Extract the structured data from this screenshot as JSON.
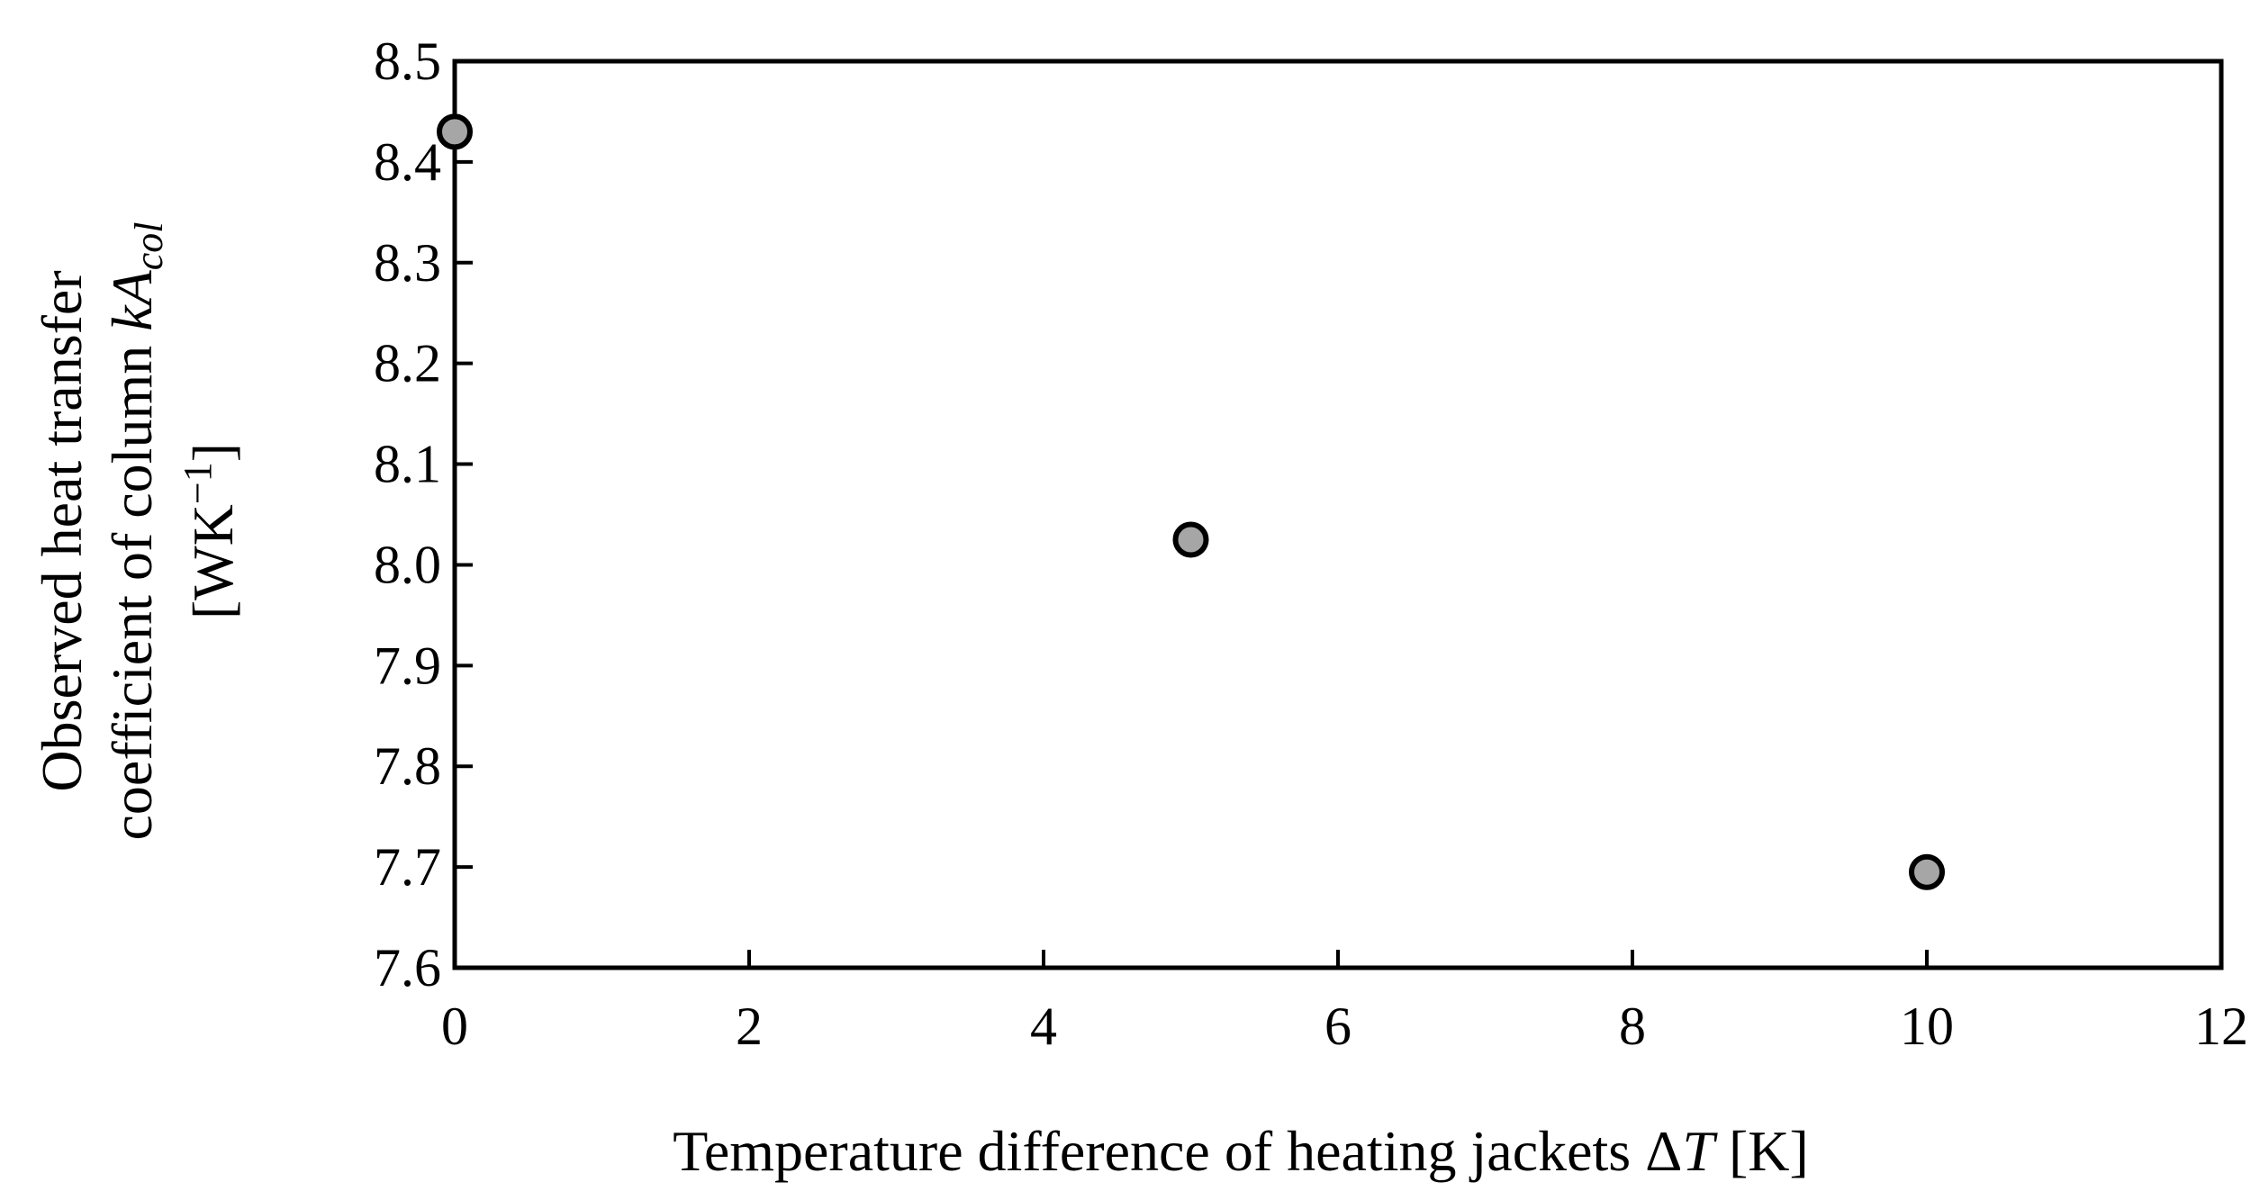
{
  "chart_data": {
    "type": "scatter",
    "title": "",
    "xlabel": "Temperature difference of heating jackets ΔT [K]",
    "xlabel_parts": {
      "prefix": "Temperature difference of heating jackets Δ",
      "var": "T",
      "suffix": " [K]"
    },
    "ylabel_lines": [
      "Observed heat transfer",
      "coefficient of column kAcol",
      "[WK−1]"
    ],
    "ylabel_parts": {
      "line1": "Observed heat transfer",
      "line2_prefix": "coefficient of column ",
      "line2_var": "kA",
      "line2_sub": "col",
      "line3_prefix": "[WK",
      "line3_sup": "−1",
      "line3_suffix": "]"
    },
    "xlim": [
      0,
      12
    ],
    "ylim": [
      7.6,
      8.5
    ],
    "xticks": [
      0,
      2,
      4,
      6,
      8,
      10,
      12
    ],
    "yticks": [
      7.6,
      7.7,
      7.8,
      7.9,
      8.0,
      8.1,
      8.2,
      8.3,
      8.4,
      8.5
    ],
    "grid": false,
    "series": [
      {
        "x": [
          0,
          5,
          10
        ],
        "y": [
          8.43,
          8.025,
          7.695
        ]
      }
    ],
    "marker_fill": "#a6a6a6",
    "marker_stroke": "#000000"
  }
}
